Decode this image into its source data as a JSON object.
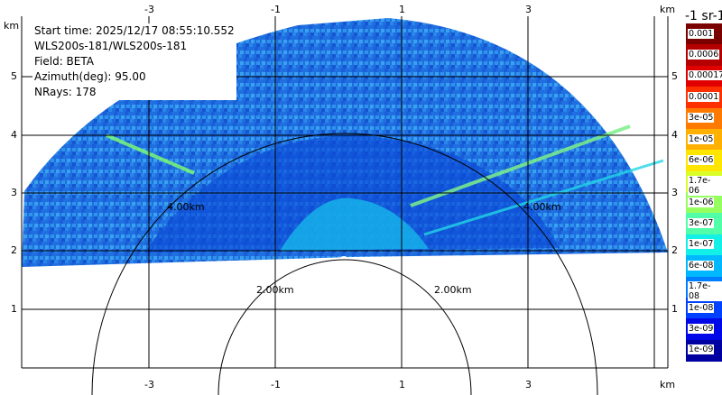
{
  "info": {
    "start_time": "Start time: 2025/12/17 08:55:10.552",
    "instrument": "WLS200s-181/WLS200s-181",
    "field": "Field: BETA",
    "azimuth": "Azimuth(deg): 95.00",
    "nrays": "NRays: 178"
  },
  "axes": {
    "unit": "km",
    "x_ticks": [
      "-3",
      "-1",
      "1",
      "3"
    ],
    "y_ticks": [
      "5",
      "4",
      "3",
      "2",
      "1"
    ]
  },
  "range_rings": [
    "4.00km",
    "4.00km",
    "2.00km",
    "2.00km"
  ],
  "colorbar": {
    "title": "-1 sr-1",
    "labels": [
      "0.001",
      "0.0006",
      "0.00017",
      "0.0001",
      "3e-05",
      "1e-05",
      "6e-06",
      "1.7e-06",
      "1e-06",
      "3e-07",
      "1e-07",
      "6e-08",
      "1.7e-08",
      "1e-08",
      "3e-09",
      "1e-09"
    ],
    "colors": [
      "#7a0000",
      "#b40000",
      "#e00000",
      "#ff3000",
      "#ff7a00",
      "#ffb000",
      "#ffe600",
      "#d8ff2a",
      "#96ff60",
      "#50ffa8",
      "#12f0e8",
      "#00b8ff",
      "#007cff",
      "#0040ff",
      "#0008e8",
      "#0000a0"
    ]
  }
}
